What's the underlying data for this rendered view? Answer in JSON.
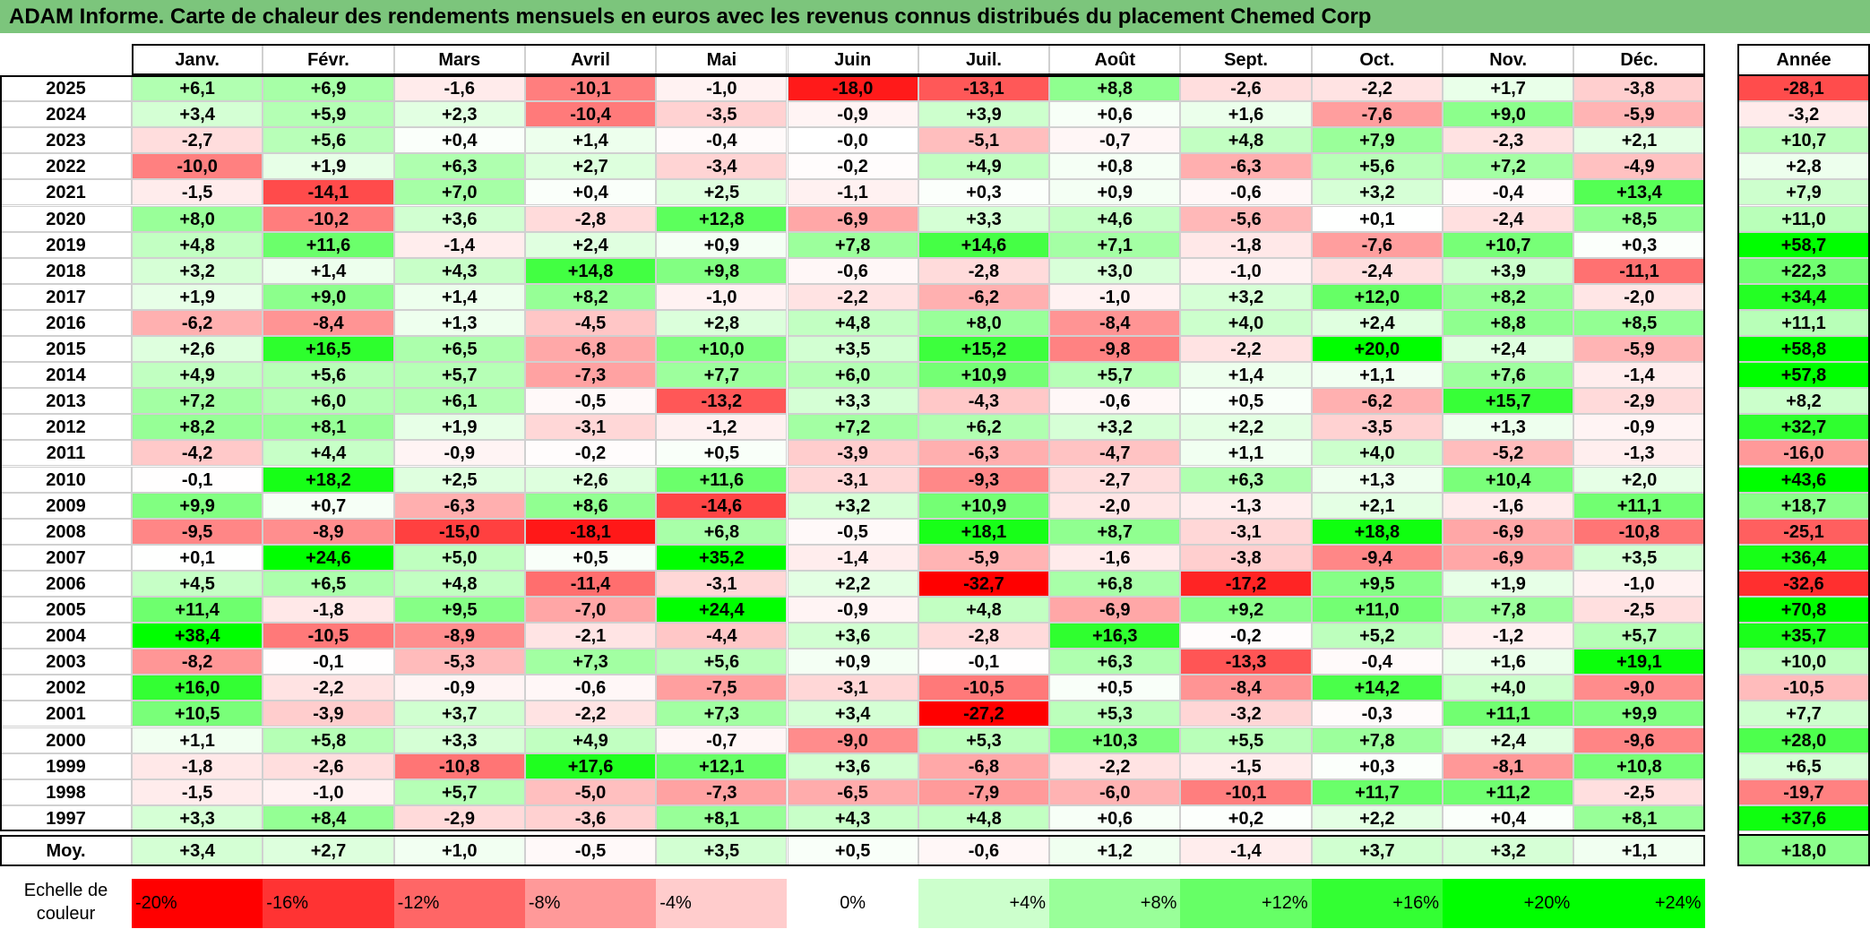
{
  "title": "ADAM Informe. Carte de chaleur des rendements mensuels en euros avec les revenus connus distribués du placement Chemed Corp",
  "colors": {
    "title_bg": "#7cc57c",
    "red_max": "#ff0000",
    "green_max": "#00ff00",
    "neutral": "#ffffff"
  },
  "chart_data": {
    "type": "heatmap",
    "months": [
      "Janv.",
      "Févr.",
      "Mars",
      "Avril",
      "Mai",
      "Juin",
      "Juil.",
      "Août",
      "Sept.",
      "Oct.",
      "Nov.",
      "Déc."
    ],
    "annual_header": "Année",
    "rows": [
      {
        "year": "2025",
        "values": [
          "+6,1",
          "+6,9",
          "-1,6",
          "-10,1",
          "-1,0",
          "-18,0",
          "-13,1",
          "+8,8",
          "-2,6",
          "-2,2",
          "+1,7",
          "-3,8"
        ],
        "annual": "-28,1"
      },
      {
        "year": "2024",
        "values": [
          "+3,4",
          "+5,9",
          "+2,3",
          "-10,4",
          "-3,5",
          "-0,9",
          "+3,9",
          "+0,6",
          "+1,6",
          "-7,6",
          "+9,0",
          "-5,9"
        ],
        "annual": "-3,2"
      },
      {
        "year": "2023",
        "values": [
          "-2,7",
          "+5,6",
          "+0,4",
          "+1,4",
          "-0,4",
          "-0,0",
          "-5,1",
          "-0,7",
          "+4,8",
          "+7,9",
          "-2,3",
          "+2,1"
        ],
        "annual": "+10,7"
      },
      {
        "year": "2022",
        "values": [
          "-10,0",
          "+1,9",
          "+6,3",
          "+2,7",
          "-3,4",
          "-0,2",
          "+4,9",
          "+0,8",
          "-6,3",
          "+5,6",
          "+7,2",
          "-4,9"
        ],
        "annual": "+2,8"
      },
      {
        "year": "2021",
        "values": [
          "-1,5",
          "-14,1",
          "+7,0",
          "+0,4",
          "+2,5",
          "-1,1",
          "+0,3",
          "+0,9",
          "-0,6",
          "+3,2",
          "-0,4",
          "+13,4"
        ],
        "annual": "+7,9"
      },
      {
        "year": "2020",
        "values": [
          "+8,0",
          "-10,2",
          "+3,6",
          "-2,8",
          "+12,8",
          "-6,9",
          "+3,3",
          "+4,6",
          "-5,6",
          "+0,1",
          "-2,4",
          "+8,5"
        ],
        "annual": "+11,0"
      },
      {
        "year": "2019",
        "values": [
          "+4,8",
          "+11,6",
          "-1,4",
          "+2,4",
          "+0,9",
          "+7,8",
          "+14,6",
          "+7,1",
          "-1,8",
          "-7,6",
          "+10,7",
          "+0,3"
        ],
        "annual": "+58,7"
      },
      {
        "year": "2018",
        "values": [
          "+3,2",
          "+1,4",
          "+4,3",
          "+14,8",
          "+9,8",
          "-0,6",
          "-2,8",
          "+3,0",
          "-1,0",
          "-2,4",
          "+3,9",
          "-11,1"
        ],
        "annual": "+22,3"
      },
      {
        "year": "2017",
        "values": [
          "+1,9",
          "+9,0",
          "+1,4",
          "+8,2",
          "-1,0",
          "-2,2",
          "-6,2",
          "-1,0",
          "+3,2",
          "+12,0",
          "+8,2",
          "-2,0"
        ],
        "annual": "+34,4"
      },
      {
        "year": "2016",
        "values": [
          "-6,2",
          "-8,4",
          "+1,3",
          "-4,5",
          "+2,8",
          "+4,8",
          "+8,0",
          "-8,4",
          "+4,0",
          "+2,4",
          "+8,8",
          "+8,5"
        ],
        "annual": "+11,1"
      },
      {
        "year": "2015",
        "values": [
          "+2,6",
          "+16,5",
          "+6,5",
          "-6,8",
          "+10,0",
          "+3,5",
          "+15,2",
          "-9,8",
          "-2,2",
          "+20,0",
          "+2,4",
          "-5,9"
        ],
        "annual": "+58,8"
      },
      {
        "year": "2014",
        "values": [
          "+4,9",
          "+5,6",
          "+5,7",
          "-7,3",
          "+7,7",
          "+6,0",
          "+10,9",
          "+5,7",
          "+1,4",
          "+1,1",
          "+7,6",
          "-1,4"
        ],
        "annual": "+57,8"
      },
      {
        "year": "2013",
        "values": [
          "+7,2",
          "+6,0",
          "+6,1",
          "-0,5",
          "-13,2",
          "+3,3",
          "-4,3",
          "-0,6",
          "+0,5",
          "-6,2",
          "+15,7",
          "-2,9"
        ],
        "annual": "+8,2"
      },
      {
        "year": "2012",
        "values": [
          "+8,2",
          "+8,1",
          "+1,9",
          "-3,1",
          "-1,2",
          "+7,2",
          "+6,2",
          "+3,2",
          "+2,2",
          "-3,5",
          "+1,3",
          "-0,9"
        ],
        "annual": "+32,7"
      },
      {
        "year": "2011",
        "values": [
          "-4,2",
          "+4,4",
          "-0,9",
          "-0,2",
          "+0,5",
          "-3,9",
          "-6,3",
          "-4,7",
          "+1,1",
          "+4,0",
          "-5,2",
          "-1,3"
        ],
        "annual": "-16,0"
      },
      {
        "year": "2010",
        "values": [
          "-0,1",
          "+18,2",
          "+2,5",
          "+2,6",
          "+11,6",
          "-3,1",
          "-9,3",
          "-2,7",
          "+6,3",
          "+1,3",
          "+10,4",
          "+2,0"
        ],
        "annual": "+43,6"
      },
      {
        "year": "2009",
        "values": [
          "+9,9",
          "+0,7",
          "-6,3",
          "+8,6",
          "-14,6",
          "+3,2",
          "+10,9",
          "-2,0",
          "-1,3",
          "+2,1",
          "-1,6",
          "+11,1"
        ],
        "annual": "+18,7"
      },
      {
        "year": "2008",
        "values": [
          "-9,5",
          "-8,9",
          "-15,0",
          "-18,1",
          "+6,8",
          "-0,5",
          "+18,1",
          "+8,7",
          "-3,1",
          "+18,8",
          "-6,9",
          "-10,8"
        ],
        "annual": "-25,1"
      },
      {
        "year": "2007",
        "values": [
          "+0,1",
          "+24,6",
          "+5,0",
          "+0,5",
          "+35,2",
          "-1,4",
          "-5,9",
          "-1,6",
          "-3,8",
          "-9,4",
          "-6,9",
          "+3,5"
        ],
        "annual": "+36,4"
      },
      {
        "year": "2006",
        "values": [
          "+4,5",
          "+6,5",
          "+4,8",
          "-11,4",
          "-3,1",
          "+2,2",
          "-32,7",
          "+6,8",
          "-17,2",
          "+9,5",
          "+1,9",
          "-1,0"
        ],
        "annual": "-32,6"
      },
      {
        "year": "2005",
        "values": [
          "+11,4",
          "-1,8",
          "+9,5",
          "-7,0",
          "+24,4",
          "-0,9",
          "+4,8",
          "-6,9",
          "+9,2",
          "+11,0",
          "+7,8",
          "-2,5"
        ],
        "annual": "+70,8"
      },
      {
        "year": "2004",
        "values": [
          "+38,4",
          "-10,5",
          "-8,9",
          "-2,1",
          "-4,4",
          "+3,6",
          "-2,8",
          "+16,3",
          "-0,2",
          "+5,2",
          "-1,2",
          "+5,7"
        ],
        "annual": "+35,7"
      },
      {
        "year": "2003",
        "values": [
          "-8,2",
          "-0,1",
          "-5,3",
          "+7,3",
          "+5,6",
          "+0,9",
          "-0,1",
          "+6,3",
          "-13,3",
          "-0,4",
          "+1,6",
          "+19,1"
        ],
        "annual": "+10,0"
      },
      {
        "year": "2002",
        "values": [
          "+16,0",
          "-2,2",
          "-0,9",
          "-0,6",
          "-7,5",
          "-3,1",
          "-10,5",
          "+0,5",
          "-8,4",
          "+14,2",
          "+4,0",
          "-9,0"
        ],
        "annual": "-10,5"
      },
      {
        "year": "2001",
        "values": [
          "+10,5",
          "-3,9",
          "+3,7",
          "-2,2",
          "+7,3",
          "+3,4",
          "-27,2",
          "+5,3",
          "-3,2",
          "-0,3",
          "+11,1",
          "+9,9"
        ],
        "annual": "+7,7"
      },
      {
        "year": "2000",
        "values": [
          "+1,1",
          "+5,8",
          "+3,3",
          "+4,9",
          "-0,7",
          "-9,0",
          "+5,3",
          "+10,3",
          "+5,5",
          "+7,8",
          "+2,4",
          "-9,6"
        ],
        "annual": "+28,0"
      },
      {
        "year": "1999",
        "values": [
          "-1,8",
          "-2,6",
          "-10,8",
          "+17,6",
          "+12,1",
          "+3,6",
          "-6,8",
          "-2,2",
          "-1,5",
          "+0,3",
          "-8,1",
          "+10,8"
        ],
        "annual": "+6,5"
      },
      {
        "year": "1998",
        "values": [
          "-1,5",
          "-1,0",
          "+5,7",
          "-5,0",
          "-7,3",
          "-6,5",
          "-7,9",
          "-6,0",
          "-10,1",
          "+11,7",
          "+11,2",
          "-2,5"
        ],
        "annual": "-19,7"
      },
      {
        "year": "1997",
        "values": [
          "+3,3",
          "+8,4",
          "-2,9",
          "-3,6",
          "+8,1",
          "+4,3",
          "+4,8",
          "+0,6",
          "+0,2",
          "+2,2",
          "+0,4",
          "+8,1"
        ],
        "annual": "+37,6"
      }
    ],
    "average": {
      "label": "Moy.",
      "values": [
        "+3,4",
        "+2,7",
        "+1,0",
        "-0,5",
        "+3,5",
        "+0,5",
        "-0,6",
        "+1,2",
        "-1,4",
        "+3,7",
        "+3,2",
        "+1,1"
      ],
      "annual": "+18,0"
    },
    "scale": {
      "label_line1": "Echelle de",
      "label_line2": "couleur",
      "steps": [
        "-20%",
        "-16%",
        "-12%",
        "-8%",
        "-4%",
        "0%",
        "+4%",
        "+8%",
        "+12%",
        "+16%",
        "+20%",
        "+24%"
      ],
      "step_values": [
        -20,
        -16,
        -12,
        -8,
        -4,
        0,
        4,
        8,
        12,
        16,
        20,
        24
      ]
    }
  }
}
